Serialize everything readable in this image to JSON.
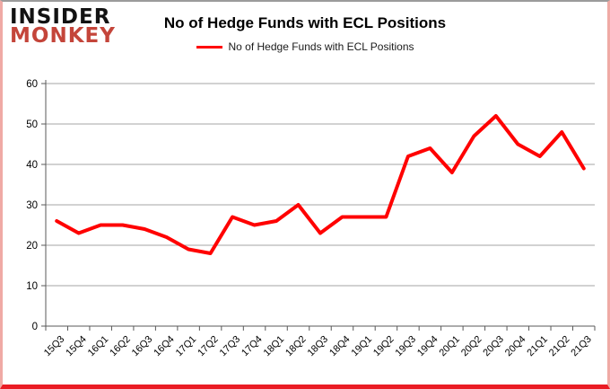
{
  "logo": {
    "line1": "INSIDER",
    "line2": "MONKEY",
    "line1_color": "#121212",
    "line2_color": "#c4453a"
  },
  "header": {
    "title": "No of Hedge Funds with ECL Positions"
  },
  "legend": {
    "label": "No of Hedge Funds with ECL Positions",
    "line_color": "#ff0000"
  },
  "chart_data": {
    "type": "line",
    "title": "No of Hedge Funds with ECL Positions",
    "categories": [
      "15Q3",
      "15Q4",
      "16Q1",
      "16Q2",
      "16Q3",
      "16Q4",
      "17Q1",
      "17Q2",
      "17Q3",
      "17Q4",
      "18Q1",
      "18Q2",
      "18Q3",
      "18Q4",
      "19Q1",
      "19Q2",
      "19Q3",
      "19Q4",
      "20Q1",
      "20Q2",
      "20Q3",
      "20Q4",
      "21Q1",
      "21Q2",
      "21Q3"
    ],
    "series": [
      {
        "name": "No of Hedge Funds with ECL Positions",
        "color": "#ff0000",
        "values": [
          26,
          23,
          25,
          25,
          24,
          22,
          19,
          18,
          27,
          25,
          26,
          30,
          23,
          27,
          27,
          27,
          42,
          44,
          38,
          47,
          52,
          45,
          42,
          48,
          39
        ]
      }
    ],
    "xlabel": "",
    "ylabel": "",
    "ylim": [
      0,
      60
    ],
    "ytick_interval": 10,
    "yticks": [
      0,
      10,
      20,
      30,
      40,
      50,
      60
    ],
    "grid": true,
    "legend_position": "top",
    "x_label_rotation": -45
  },
  "colors": {
    "line": "#ff0000",
    "gridline": "#a6a6a6",
    "axis": "#595959",
    "tick_text": "#000000",
    "border_bottom": "#ea1c24",
    "border_sides": "#f0aaa5",
    "border_top": "#9b9b9b",
    "background": "#ffffff"
  }
}
